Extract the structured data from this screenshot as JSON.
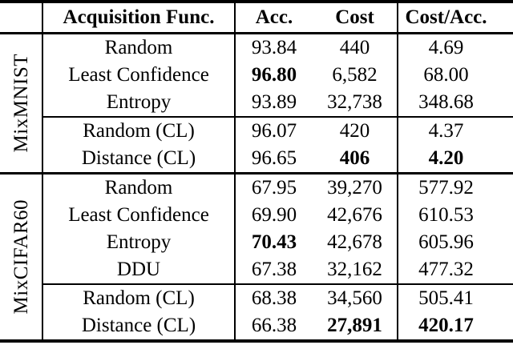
{
  "colors": {
    "text": "#000000",
    "background": "#ffffff",
    "rule": "#000000"
  },
  "table": {
    "headers": {
      "corner": "",
      "acq": "Acquisition Func.",
      "acc": "Acc.",
      "cost": "Cost",
      "cost_acc": "Cost/Acc."
    },
    "groups": [
      {
        "label": "MixMNIST",
        "sections": [
          {
            "rows": [
              {
                "acq": "Random",
                "acc": "93.84",
                "cost": "440",
                "cost_acc": "4.69",
                "bold": []
              },
              {
                "acq": "Least Confidence",
                "acc": "96.80",
                "cost": "6,582",
                "cost_acc": "68.00",
                "bold": [
                  "acc"
                ]
              },
              {
                "acq": "Entropy",
                "acc": "93.89",
                "cost": "32,738",
                "cost_acc": "348.68",
                "bold": []
              }
            ]
          },
          {
            "rows": [
              {
                "acq": "Random (CL)",
                "acc": "96.07",
                "cost": "420",
                "cost_acc": "4.37",
                "bold": []
              },
              {
                "acq": "Distance (CL)",
                "acc": "96.65",
                "cost": "406",
                "cost_acc": "4.20",
                "bold": [
                  "cost",
                  "cost_acc"
                ]
              }
            ]
          }
        ]
      },
      {
        "label": "MixCIFAR60",
        "sections": [
          {
            "rows": [
              {
                "acq": "Random",
                "acc": "67.95",
                "cost": "39,270",
                "cost_acc": "577.92",
                "bold": []
              },
              {
                "acq": "Least Confidence",
                "acc": "69.90",
                "cost": "42,676",
                "cost_acc": "610.53",
                "bold": []
              },
              {
                "acq": "Entropy",
                "acc": "70.43",
                "cost": "42,678",
                "cost_acc": "605.96",
                "bold": [
                  "acc"
                ]
              },
              {
                "acq": "DDU",
                "acc": "67.38",
                "cost": "32,162",
                "cost_acc": "477.32",
                "bold": []
              }
            ]
          },
          {
            "rows": [
              {
                "acq": "Random (CL)",
                "acc": "68.38",
                "cost": "34,560",
                "cost_acc": "505.41",
                "bold": []
              },
              {
                "acq": "Distance (CL)",
                "acc": "66.38",
                "cost": "27,891",
                "cost_acc": "420.17",
                "bold": [
                  "cost",
                  "cost_acc"
                ]
              }
            ]
          }
        ]
      }
    ]
  }
}
